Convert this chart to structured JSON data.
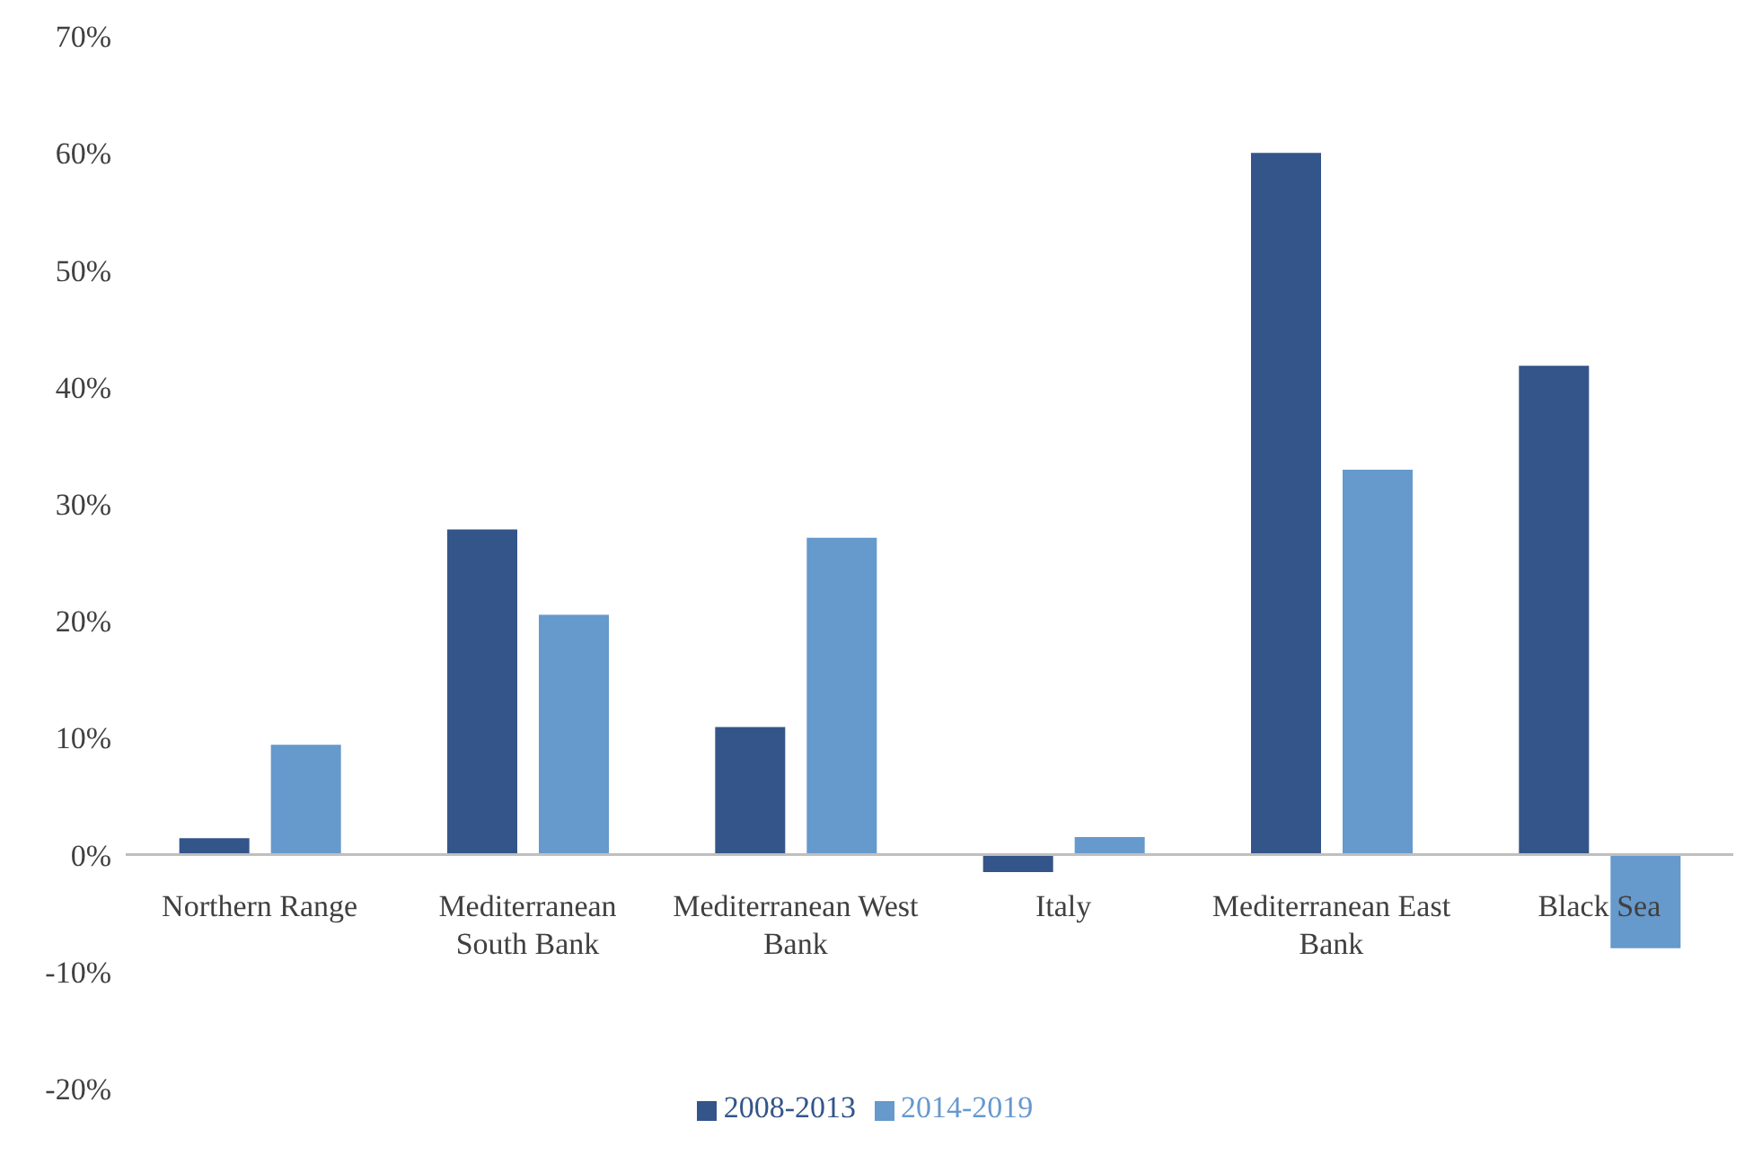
{
  "chart_data": {
    "type": "bar",
    "categories": [
      "Northern Range",
      "Mediterranean South Bank",
      "Mediterranean West Bank",
      "Italy",
      "Mediterranean East Bank",
      "Black Sea"
    ],
    "series": [
      {
        "name": "2008-2013",
        "color": "#335589",
        "values": [
          1.4,
          27.8,
          10.9,
          -1.5,
          60.0,
          41.8
        ]
      },
      {
        "name": "2014-2019",
        "color": "#6699cc",
        "values": [
          9.4,
          20.5,
          27.1,
          1.5,
          32.9,
          -8.0
        ]
      }
    ],
    "ylim": [
      -20,
      70
    ],
    "yticks": [
      {
        "value": -20,
        "label": "-20%"
      },
      {
        "value": -10,
        "label": "-10%"
      },
      {
        "value": 0,
        "label": "0%"
      },
      {
        "value": 10,
        "label": "10%"
      },
      {
        "value": 20,
        "label": "20%"
      },
      {
        "value": 30,
        "label": "30%"
      },
      {
        "value": 40,
        "label": "40%"
      },
      {
        "value": 50,
        "label": "50%"
      },
      {
        "value": 60,
        "label": "60%"
      },
      {
        "value": 70,
        "label": "70%"
      }
    ],
    "grid": false,
    "legend": "bottom"
  }
}
